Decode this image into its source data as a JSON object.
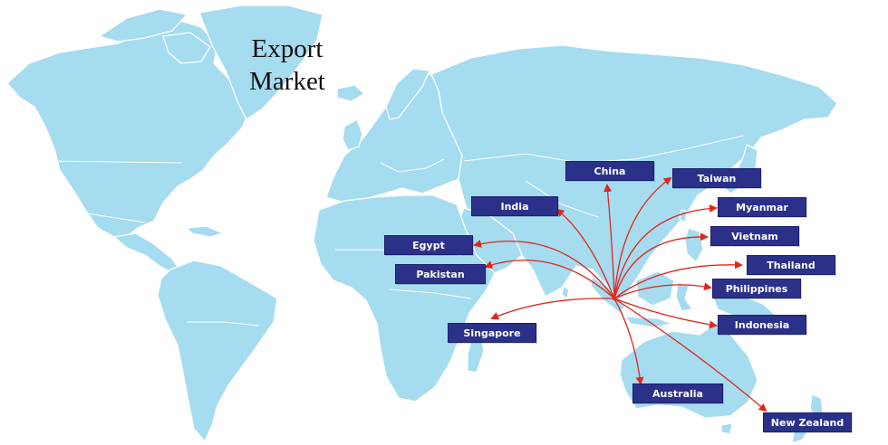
{
  "map": {
    "title_line1": "Export",
    "title_line2": "Market",
    "colors": {
      "land": "#a5dcef",
      "border": "#ffffff",
      "route_arrow": "#e0261b",
      "label_background": "#2b3189",
      "label_text": "#ffffff"
    },
    "origin_icon": "route-origin-point",
    "destinations": [
      {
        "id": "china",
        "label": "China"
      },
      {
        "id": "taiwan",
        "label": "Taiwan"
      },
      {
        "id": "myanmar",
        "label": "Myanmar"
      },
      {
        "id": "vietnam",
        "label": "Vietnam"
      },
      {
        "id": "thailand",
        "label": "Thailand"
      },
      {
        "id": "philippines",
        "label": "Philippines"
      },
      {
        "id": "indonesia",
        "label": "Indonesia"
      },
      {
        "id": "new-zealand",
        "label": "New Zealand"
      },
      {
        "id": "australia",
        "label": "Australia"
      },
      {
        "id": "singapore",
        "label": "Singapore"
      },
      {
        "id": "pakistan",
        "label": "Pakistan"
      },
      {
        "id": "egypt",
        "label": "Egypt"
      },
      {
        "id": "india",
        "label": "India"
      }
    ]
  }
}
